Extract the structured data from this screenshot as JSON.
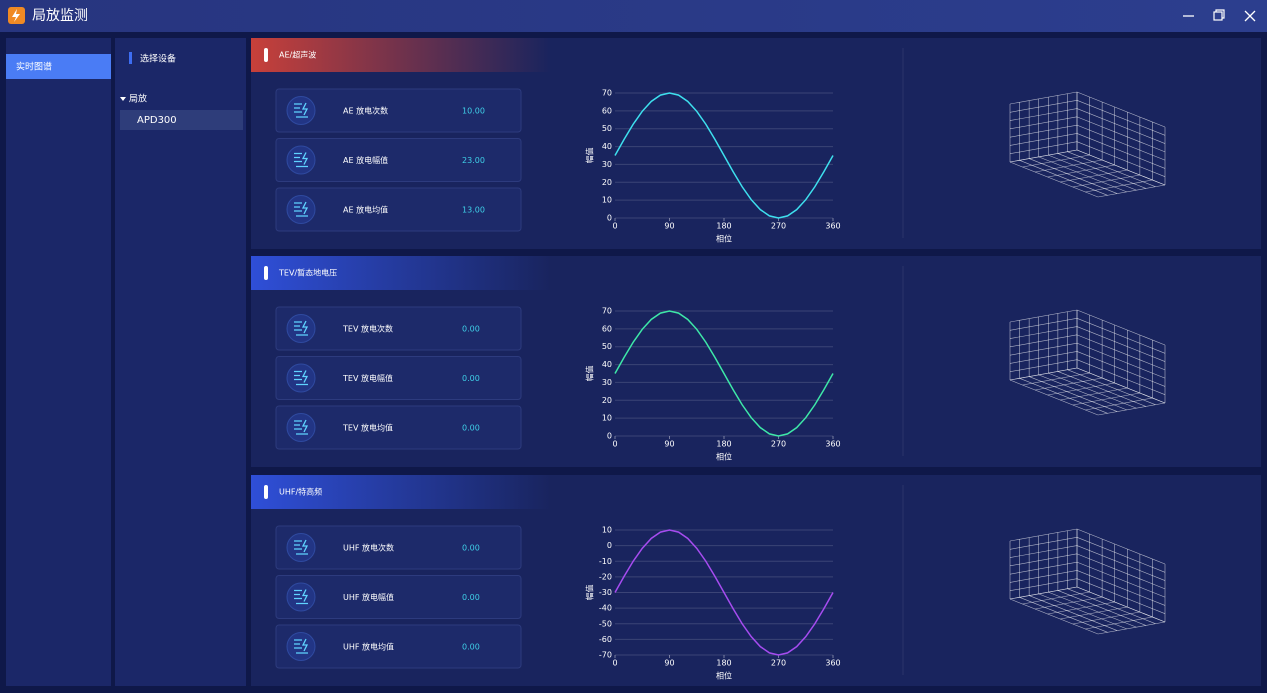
{
  "window": {
    "title": "局放监测"
  },
  "nav": {
    "items": [
      "实时图谱"
    ]
  },
  "device_tree": {
    "header": "选择设备",
    "group": "局放",
    "items": [
      "APD300"
    ]
  },
  "panels": [
    {
      "title": "AE/超声波",
      "header_color": "#c8403a",
      "metrics": [
        {
          "label": "AE 放电次数",
          "value": "10.00"
        },
        {
          "label": "AE 放电幅值",
          "value": "23.00"
        },
        {
          "label": "AE 放电均值",
          "value": "13.00"
        }
      ],
      "chart_data": {
        "type": "line",
        "xlabel": "相位",
        "ylabel": "幅值",
        "x": [
          0,
          15,
          30,
          45,
          60,
          75,
          90,
          105,
          120,
          135,
          150,
          165,
          180,
          195,
          210,
          225,
          240,
          255,
          270,
          285,
          300,
          315,
          330,
          345,
          360
        ],
        "series": [
          {
            "color": "#3ee0ee",
            "values": [
              35,
              44.06,
              52.5,
              59.75,
              65.31,
              68.81,
              70,
              68.81,
              65.31,
              59.75,
              52.5,
              44.06,
              35,
              25.94,
              17.5,
              10.25,
              4.69,
              1.19,
              0,
              1.19,
              4.69,
              10.25,
              17.5,
              25.94,
              35
            ]
          }
        ],
        "xlim": [
          0,
          360
        ],
        "xticks": [
          0,
          90,
          180,
          270,
          360
        ],
        "ylim": [
          0,
          70
        ],
        "yticks": [
          0,
          10,
          20,
          30,
          40,
          50,
          60,
          70
        ],
        "grid": true
      }
    },
    {
      "title": "TEV/暂态地电压",
      "header_color": "#2f4fd8",
      "metrics": [
        {
          "label": "TEV 放电次数",
          "value": "0.00"
        },
        {
          "label": "TEV 放电幅值",
          "value": "0.00"
        },
        {
          "label": "TEV 放电均值",
          "value": "0.00"
        }
      ],
      "chart_data": {
        "type": "line",
        "xlabel": "相位",
        "ylabel": "幅值",
        "x": [
          0,
          15,
          30,
          45,
          60,
          75,
          90,
          105,
          120,
          135,
          150,
          165,
          180,
          195,
          210,
          225,
          240,
          255,
          270,
          285,
          300,
          315,
          330,
          345,
          360
        ],
        "series": [
          {
            "color": "#3ee8a8",
            "values": [
              35,
              44.06,
              52.5,
              59.75,
              65.31,
              68.81,
              70,
              68.81,
              65.31,
              59.75,
              52.5,
              44.06,
              35,
              25.94,
              17.5,
              10.25,
              4.69,
              1.19,
              0,
              1.19,
              4.69,
              10.25,
              17.5,
              25.94,
              35
            ]
          }
        ],
        "xlim": [
          0,
          360
        ],
        "xticks": [
          0,
          90,
          180,
          270,
          360
        ],
        "ylim": [
          0,
          70
        ],
        "yticks": [
          0,
          10,
          20,
          30,
          40,
          50,
          60,
          70
        ],
        "grid": true
      }
    },
    {
      "title": "UHF/特高频",
      "header_color": "#2f4fd8",
      "metrics": [
        {
          "label": "UHF 放电次数",
          "value": "0.00"
        },
        {
          "label": "UHF 放电幅值",
          "value": "0.00"
        },
        {
          "label": "UHF 放电均值",
          "value": "0.00"
        }
      ],
      "chart_data": {
        "type": "line",
        "xlabel": "相位",
        "ylabel": "幅值",
        "x": [
          0,
          15,
          30,
          45,
          60,
          75,
          90,
          105,
          120,
          135,
          150,
          165,
          180,
          195,
          210,
          225,
          240,
          255,
          270,
          285,
          300,
          315,
          330,
          345,
          360
        ],
        "series": [
          {
            "color": "#a64cf0",
            "values": [
              -30,
              -19.65,
              -10,
              -1.72,
              4.64,
              8.64,
              10,
              8.64,
              4.64,
              -1.72,
              -10,
              -19.65,
              -30,
              -40.35,
              -50,
              -58.28,
              -64.64,
              -68.64,
              -70,
              -68.64,
              -64.64,
              -58.28,
              -50,
              -40.35,
              -30
            ]
          }
        ],
        "xlim": [
          0,
          360
        ],
        "xticks": [
          0,
          90,
          180,
          270,
          360
        ],
        "ylim": [
          -70,
          10
        ],
        "yticks": [
          -70,
          -60,
          -50,
          -40,
          -30,
          -20,
          -10,
          0,
          10
        ],
        "grid": true
      }
    }
  ]
}
